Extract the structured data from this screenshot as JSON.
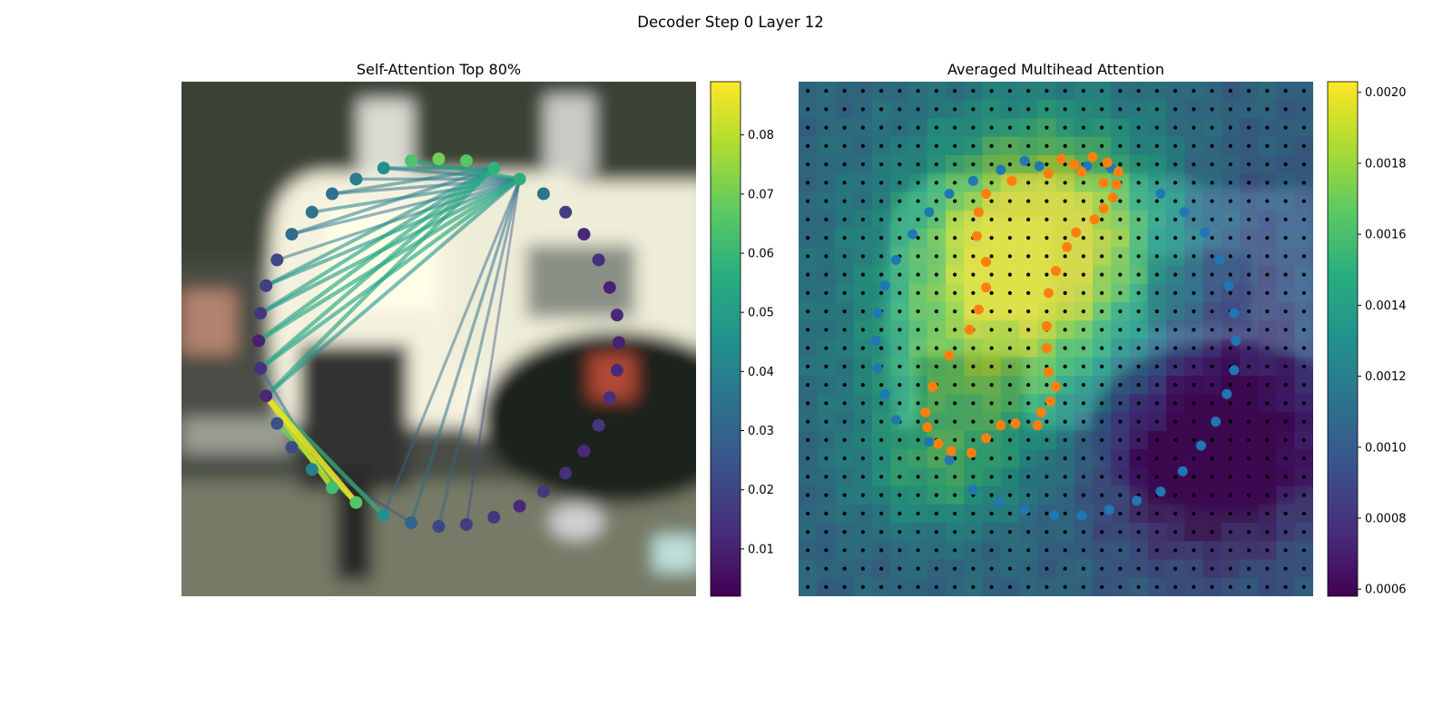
{
  "figure": {
    "suptitle": "Decoder Step 0 Layer 12"
  },
  "chart_data": [
    {
      "type": "scatter",
      "title": "Self-Attention Top 80%",
      "xlim": [
        0,
        28
      ],
      "ylim": [
        28,
        0
      ],
      "axes_visible": false,
      "background": "blurred street scene photo (white truck, parked car)",
      "colormap": "viridis",
      "points": [
        {
          "x": 14.0,
          "y": 4.2,
          "v": 0.07
        },
        {
          "x": 15.5,
          "y": 4.3,
          "v": 0.066
        },
        {
          "x": 17.0,
          "y": 4.7,
          "v": 0.058
        },
        {
          "x": 18.4,
          "y": 5.3,
          "v": 0.056
        },
        {
          "x": 19.7,
          "y": 6.1,
          "v": 0.036
        },
        {
          "x": 20.9,
          "y": 7.1,
          "v": 0.018
        },
        {
          "x": 21.9,
          "y": 8.3,
          "v": 0.012
        },
        {
          "x": 22.7,
          "y": 9.7,
          "v": 0.014
        },
        {
          "x": 23.3,
          "y": 11.2,
          "v": 0.01
        },
        {
          "x": 23.7,
          "y": 12.7,
          "v": 0.012
        },
        {
          "x": 23.8,
          "y": 14.2,
          "v": 0.01
        },
        {
          "x": 23.7,
          "y": 15.7,
          "v": 0.012
        },
        {
          "x": 23.3,
          "y": 17.2,
          "v": 0.014
        },
        {
          "x": 22.7,
          "y": 18.7,
          "v": 0.016
        },
        {
          "x": 21.9,
          "y": 20.1,
          "v": 0.012
        },
        {
          "x": 20.9,
          "y": 21.3,
          "v": 0.014
        },
        {
          "x": 19.7,
          "y": 22.3,
          "v": 0.016
        },
        {
          "x": 18.4,
          "y": 23.1,
          "v": 0.012
        },
        {
          "x": 17.0,
          "y": 23.7,
          "v": 0.016
        },
        {
          "x": 15.5,
          "y": 24.1,
          "v": 0.018
        },
        {
          "x": 14.0,
          "y": 24.2,
          "v": 0.02
        },
        {
          "x": 12.5,
          "y": 24.0,
          "v": 0.03
        },
        {
          "x": 11.0,
          "y": 23.6,
          "v": 0.046
        },
        {
          "x": 9.5,
          "y": 22.9,
          "v": 0.066
        },
        {
          "x": 8.2,
          "y": 22.1,
          "v": 0.062
        },
        {
          "x": 7.1,
          "y": 21.1,
          "v": 0.04
        },
        {
          "x": 6.0,
          "y": 19.9,
          "v": 0.022
        },
        {
          "x": 5.2,
          "y": 18.6,
          "v": 0.024
        },
        {
          "x": 4.6,
          "y": 17.1,
          "v": 0.012
        },
        {
          "x": 4.3,
          "y": 15.6,
          "v": 0.014
        },
        {
          "x": 4.2,
          "y": 14.1,
          "v": 0.01
        },
        {
          "x": 4.3,
          "y": 12.6,
          "v": 0.016
        },
        {
          "x": 4.6,
          "y": 11.1,
          "v": 0.018
        },
        {
          "x": 5.2,
          "y": 9.7,
          "v": 0.02
        },
        {
          "x": 6.0,
          "y": 8.3,
          "v": 0.032
        },
        {
          "x": 7.1,
          "y": 7.1,
          "v": 0.036
        },
        {
          "x": 8.2,
          "y": 6.1,
          "v": 0.034
        },
        {
          "x": 9.5,
          "y": 5.3,
          "v": 0.038
        },
        {
          "x": 11.0,
          "y": 4.7,
          "v": 0.046
        },
        {
          "x": 12.5,
          "y": 4.3,
          "v": 0.064
        }
      ],
      "edges": [
        {
          "from": 3,
          "to": 39,
          "v": 0.052
        },
        {
          "from": 3,
          "to": 38,
          "v": 0.04
        },
        {
          "from": 3,
          "to": 37,
          "v": 0.036
        },
        {
          "from": 3,
          "to": 36,
          "v": 0.034
        },
        {
          "from": 3,
          "to": 35,
          "v": 0.04
        },
        {
          "from": 3,
          "to": 34,
          "v": 0.034
        },
        {
          "from": 3,
          "to": 33,
          "v": 0.034
        },
        {
          "from": 3,
          "to": 32,
          "v": 0.046
        },
        {
          "from": 3,
          "to": 31,
          "v": 0.05
        },
        {
          "from": 3,
          "to": 30,
          "v": 0.054
        },
        {
          "from": 3,
          "to": 29,
          "v": 0.052
        },
        {
          "from": 3,
          "to": 28,
          "v": 0.046
        },
        {
          "from": 3,
          "to": 22,
          "v": 0.03
        },
        {
          "from": 3,
          "to": 21,
          "v": 0.034
        },
        {
          "from": 3,
          "to": 20,
          "v": 0.03
        },
        {
          "from": 3,
          "to": 19,
          "v": 0.022
        },
        {
          "from": 2,
          "to": 32,
          "v": 0.046
        },
        {
          "from": 2,
          "to": 31,
          "v": 0.05
        },
        {
          "from": 2,
          "to": 30,
          "v": 0.054
        },
        {
          "from": 2,
          "to": 29,
          "v": 0.054
        },
        {
          "from": 2,
          "to": 28,
          "v": 0.052
        },
        {
          "from": 2,
          "to": 34,
          "v": 0.04
        },
        {
          "from": 2,
          "to": 36,
          "v": 0.04
        },
        {
          "from": 2,
          "to": 38,
          "v": 0.044
        },
        {
          "from": 28,
          "to": 23,
          "v": 0.086
        },
        {
          "from": 28,
          "to": 24,
          "v": 0.082
        },
        {
          "from": 28,
          "to": 22,
          "v": 0.06
        },
        {
          "from": 27,
          "to": 23,
          "v": 0.07
        },
        {
          "from": 29,
          "to": 24,
          "v": 0.034
        },
        {
          "from": 26,
          "to": 21,
          "v": 0.024
        }
      ],
      "colorbar": {
        "ticks": [
          0.01,
          0.02,
          0.03,
          0.04,
          0.05,
          0.06,
          0.07,
          0.08
        ],
        "range": [
          0.002,
          0.089
        ]
      }
    },
    {
      "type": "heatmap",
      "title": "Averaged Multihead Attention",
      "grid_size": 28,
      "axes_visible": false,
      "colormap": "viridis",
      "overlay": "28x28 grid of black dots; blue ring of keypoints and orange '2'-shaped keypoints",
      "hotspots": [
        {
          "cx": 13.5,
          "cy": 8.0,
          "sx": 4.5,
          "sy": 4.5,
          "w": 1.0
        },
        {
          "cx": 10.5,
          "cy": 12.0,
          "sx": 5.5,
          "sy": 5.0,
          "w": 0.55
        },
        {
          "cx": 7.5,
          "cy": 21.5,
          "sx": 3.0,
          "sy": 2.2,
          "w": 0.45
        },
        {
          "cx": 9.0,
          "cy": 17.0,
          "sx": 4.0,
          "sy": 3.0,
          "w": 0.3
        },
        {
          "cx": 22.5,
          "cy": 20.5,
          "sx": 4.0,
          "sy": 4.0,
          "w": -0.85
        },
        {
          "cx": 24.5,
          "cy": 10.5,
          "sx": 3.0,
          "sy": 5.0,
          "w": -0.25
        }
      ],
      "blue_points": [
        [
          13.1,
          4.6
        ],
        [
          15.7,
          4.6
        ],
        [
          17.0,
          4.7
        ],
        [
          19.7,
          6.1
        ],
        [
          21.0,
          7.1
        ],
        [
          22.1,
          8.2
        ],
        [
          22.9,
          9.7
        ],
        [
          23.4,
          11.1
        ],
        [
          23.7,
          12.6
        ],
        [
          23.8,
          14.1
        ],
        [
          23.7,
          15.7
        ],
        [
          23.3,
          17.0
        ],
        [
          22.7,
          18.5
        ],
        [
          21.9,
          19.8
        ],
        [
          20.9,
          21.2
        ],
        [
          19.7,
          22.3
        ],
        [
          18.4,
          22.8
        ],
        [
          16.9,
          23.3
        ],
        [
          15.4,
          23.6
        ],
        [
          13.9,
          23.6
        ],
        [
          12.3,
          23.3
        ],
        [
          10.9,
          22.9
        ],
        [
          9.5,
          22.2
        ],
        [
          8.2,
          20.6
        ],
        [
          7.1,
          19.6
        ],
        [
          5.3,
          18.4
        ],
        [
          4.7,
          17.0
        ],
        [
          4.3,
          15.6
        ],
        [
          4.2,
          14.1
        ],
        [
          4.3,
          12.6
        ],
        [
          4.7,
          11.1
        ],
        [
          5.3,
          9.7
        ],
        [
          6.2,
          8.3
        ],
        [
          7.1,
          7.1
        ],
        [
          8.2,
          6.1
        ],
        [
          9.5,
          5.4
        ],
        [
          11.0,
          4.8
        ],
        [
          12.3,
          4.3
        ]
      ],
      "orange_points": [
        [
          14.3,
          4.2
        ],
        [
          15.0,
          4.5
        ],
        [
          16.0,
          4.1
        ],
        [
          16.8,
          4.4
        ],
        [
          17.4,
          4.9
        ],
        [
          16.6,
          5.5
        ],
        [
          17.3,
          5.6
        ],
        [
          15.4,
          4.9
        ],
        [
          13.6,
          5.0
        ],
        [
          11.6,
          5.4
        ],
        [
          10.2,
          6.1
        ],
        [
          17.1,
          6.3
        ],
        [
          16.6,
          6.9
        ],
        [
          9.8,
          7.1
        ],
        [
          16.1,
          7.5
        ],
        [
          15.1,
          8.2
        ],
        [
          9.7,
          8.4
        ],
        [
          14.6,
          9.0
        ],
        [
          10.2,
          9.8
        ],
        [
          14.0,
          10.3
        ],
        [
          10.2,
          11.2
        ],
        [
          13.6,
          11.5
        ],
        [
          9.8,
          12.4
        ],
        [
          13.5,
          13.3
        ],
        [
          9.3,
          13.5
        ],
        [
          13.5,
          14.5
        ],
        [
          8.2,
          14.9
        ],
        [
          13.6,
          15.8
        ],
        [
          7.3,
          16.6
        ],
        [
          14.0,
          16.6
        ],
        [
          13.7,
          17.4
        ],
        [
          13.2,
          18.0
        ],
        [
          6.9,
          18.0
        ],
        [
          11.8,
          18.6
        ],
        [
          11.0,
          18.7
        ],
        [
          13.0,
          18.7
        ],
        [
          7.0,
          18.8
        ],
        [
          10.2,
          19.4
        ],
        [
          7.6,
          19.7
        ],
        [
          8.3,
          20.1
        ],
        [
          9.4,
          20.2
        ]
      ],
      "colorbar": {
        "ticks": [
          0.0006,
          0.0008,
          0.001,
          0.0012,
          0.0014,
          0.0016,
          0.0018,
          0.002
        ],
        "range": [
          0.00058,
          0.00203
        ]
      }
    }
  ]
}
